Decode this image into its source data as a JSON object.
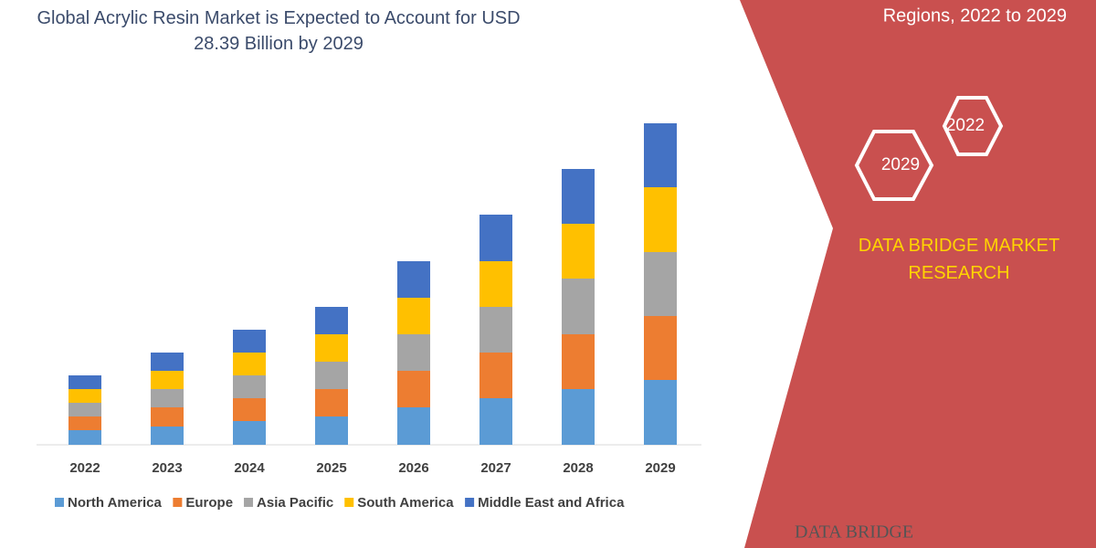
{
  "chart_data": {
    "type": "stacked-bar",
    "title": "Global Acrylic Resin Market is Expected to Account for USD 28.39 Billion by 2029",
    "categories": [
      "2022",
      "2023",
      "2024",
      "2025",
      "2026",
      "2027",
      "2028",
      "2029"
    ],
    "series": [
      {
        "name": "North America",
        "color": "#5b9bd5",
        "values": [
          16,
          20,
          26,
          31,
          41,
          51,
          61,
          71
        ]
      },
      {
        "name": "Europe",
        "color": "#ed7d31",
        "values": [
          15,
          21,
          25,
          30,
          40,
          50,
          60,
          70
        ]
      },
      {
        "name": "Asia Pacific",
        "color": "#a5a5a5",
        "values": [
          15,
          20,
          25,
          30,
          40,
          50,
          61,
          70
        ]
      },
      {
        "name": "South America",
        "color": "#ffc000",
        "values": [
          15,
          20,
          25,
          30,
          40,
          50,
          60,
          71
        ]
      },
      {
        "name": "Middle East and Africa",
        "color": "#4472c4",
        "values": [
          15,
          20,
          25,
          30,
          40,
          51,
          60,
          70
        ]
      }
    ],
    "ylim": [
      0,
      352
    ],
    "legend": "bottom"
  },
  "branding": {
    "subtitle": "Regions, 2022 to 2029",
    "hex_a": "2022",
    "hex_b": "2029",
    "company": "DATA BRIDGE MARKET RESEARCH",
    "logo": "DATA BRIDGE"
  }
}
